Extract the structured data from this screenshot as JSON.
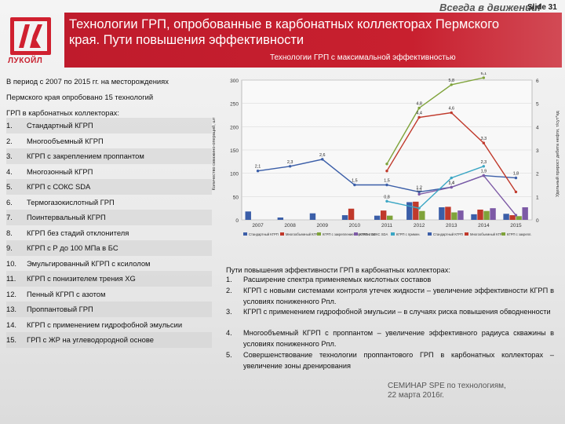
{
  "header": {
    "slogan": "Всегда в движении!",
    "slide_number": "Slide 31",
    "title_line1": "Технологии ГРП, опробованные в карбонатных коллекторах Пермского",
    "title_line2": "края. Пути повышения эффективности",
    "subtitle": "Технологии ГРП с максимальной эффективностью",
    "logo_text": "ЛУКОЙЛ",
    "logo_mark": "ЛК"
  },
  "intro": {
    "line1": "В период с 2007 по 2015 гг. на месторождениях",
    "line2": "Пермского края опробовано 15 технологий",
    "line3": "ГРП в карбонатных коллекторах:"
  },
  "technologies": [
    {
      "num": "1.",
      "label": "Стандартный КГРП"
    },
    {
      "num": "2.",
      "label": "Многообъемный КГРП"
    },
    {
      "num": "3.",
      "label": "КГРП с закреплением проппантом"
    },
    {
      "num": "4.",
      "label": "Многозонный КГРП"
    },
    {
      "num": "5.",
      "label": "КГРП с СОКС SDA"
    },
    {
      "num": "6.",
      "label": "Термогазокислотный ГРП"
    },
    {
      "num": "7.",
      "label": "Поинтервальный КГРП"
    },
    {
      "num": "8.",
      "label": "КГРП без стадий отклонителя"
    },
    {
      "num": "9.",
      "label": "КГРП с Р до 100 МПа в БС"
    },
    {
      "num": "10.",
      "label": "Эмульгированный КГРП с ксилолом"
    },
    {
      "num": "11.",
      "label": "КГРП с понизителем трения XG"
    },
    {
      "num": "12.",
      "label": "Пенный КГРП с азотом"
    },
    {
      "num": "13.",
      "label": "Проппантовый ГРП"
    },
    {
      "num": "14.",
      "label": "КГРП с применением гидрофобной эмульсии"
    },
    {
      "num": "15.",
      "label": "ГРП с ЖР на углеводородной основе"
    }
  ],
  "ways": {
    "heading": "Пути повышения эффективности ГРП в карбонатных коллекторах:",
    "items": [
      {
        "num": "1.",
        "text": "Расширение спектра применяемых кислотных составов"
      },
      {
        "num": "2.",
        "text": "КГРП с новыми системами контроля утечек жидкости – увеличение эффективности КГРП в условиях пониженного Рпл."
      },
      {
        "num": "3.",
        "text": "КГРП с применением гидрофобной эмульсии – в случаях риска повышения обводненности"
      },
      {
        "num": "4.",
        "text": "Многообъемный КГРП с проппантом – увеличение эффективного радиуса скважины в условиях пониженного Рпл."
      },
      {
        "num": "5.",
        "text": "Совершенствование технологии проппантового ГРП в карбонатных коллекторах – увеличение зоны дренирования"
      }
    ]
  },
  "footer": {
    "line1": "СЕМИНАР SPE по технологиям,",
    "line2": "22 марта 2016г."
  },
  "chart_data": {
    "type": "bar",
    "title": "",
    "ylabel_left": "Количество скважино-операций, шт",
    "ylabel_right": "Удельный прирост дебита нефти, т/сут*ед",
    "ylim_left": [
      0,
      300
    ],
    "ylim_right": [
      0,
      6
    ],
    "left_ticks": [
      "300",
      "250",
      "200",
      "150",
      "100",
      "50",
      "0"
    ],
    "right_ticks": [
      "6",
      "5",
      "4",
      "3",
      "2",
      "1",
      "0"
    ],
    "categories": [
      "2007",
      "2008",
      "2009",
      "2010",
      "2011",
      "2012",
      "2013",
      "2014",
      "2015"
    ],
    "legend": [
      "Стандартный КГРП",
      "Многообъемный КГРП",
      "КГРП с закреплением проппантом",
      "КГРП с СОКС SDA",
      "КГРП с примен.",
      "Стандартный КГРП",
      "Многообъемный КГРП",
      "КГРП с закрепл."
    ],
    "bar_series": [
      {
        "color": "#3b5ea8",
        "values": [
          18,
          5,
          14,
          10,
          9,
          38,
          27,
          12,
          13
        ]
      },
      {
        "color": "#c0392b",
        "values": [
          0,
          0,
          0,
          24,
          20,
          39,
          28,
          22,
          10
        ]
      },
      {
        "color": "#7fa33a",
        "values": [
          0,
          0,
          0,
          0,
          9,
          19,
          16,
          19,
          8
        ]
      },
      {
        "color": "#7d5aa6",
        "values": [
          0,
          0,
          0,
          0,
          0,
          0,
          20,
          25,
          27
        ]
      }
    ],
    "line_series": [
      {
        "color": "#3b5ea8",
        "values": [
          2.1,
          2.3,
          2.6,
          1.5,
          1.5,
          1.2,
          1.4,
          1.9,
          1.8
        ]
      },
      {
        "color": "#c0392b",
        "values": [
          null,
          null,
          null,
          null,
          2.1,
          4.4,
          4.6,
          3.3,
          1.2
        ]
      },
      {
        "color": "#7fa33a",
        "values": [
          null,
          null,
          null,
          null,
          2.4,
          4.8,
          5.8,
          6.1,
          null
        ]
      },
      {
        "color": "#7d5aa6",
        "values": [
          null,
          null,
          null,
          null,
          null,
          1.1,
          1.4,
          1.9,
          0.2
        ]
      },
      {
        "color": "#3aa6c4",
        "values": [
          null,
          null,
          null,
          null,
          0.8,
          0.5,
          1.8,
          2.3,
          null
        ]
      }
    ],
    "line_labels": [
      {
        "series": 0,
        "index": 0,
        "text": "2,1"
      },
      {
        "series": 0,
        "index": 1,
        "text": "2,3"
      },
      {
        "series": 0,
        "index": 2,
        "text": "2,6"
      },
      {
        "series": 0,
        "index": 3,
        "text": "1,5"
      },
      {
        "series": 0,
        "index": 4,
        "text": "1,5"
      },
      {
        "series": 0,
        "index": 5,
        "text": "1,2"
      },
      {
        "series": 0,
        "index": 6,
        "text": "1,4"
      },
      {
        "series": 0,
        "index": 7,
        "text": "1,9"
      },
      {
        "series": 0,
        "index": 8,
        "text": "1,8"
      },
      {
        "series": 1,
        "index": 5,
        "text": "4,4"
      },
      {
        "series": 1,
        "index": 6,
        "text": "4,6"
      },
      {
        "series": 1,
        "index": 7,
        "text": "3,3"
      },
      {
        "series": 2,
        "index": 5,
        "text": "4,8"
      },
      {
        "series": 2,
        "index": 6,
        "text": "5,8"
      },
      {
        "series": 2,
        "index": 7,
        "text": "6,1"
      },
      {
        "series": 3,
        "index": 5,
        "text": "1,1"
      },
      {
        "series": 3,
        "index": 6,
        "text": "1,4"
      },
      {
        "series": 4,
        "index": 4,
        "text": "0,8"
      },
      {
        "series": 4,
        "index": 7,
        "text": "2,3"
      }
    ]
  }
}
